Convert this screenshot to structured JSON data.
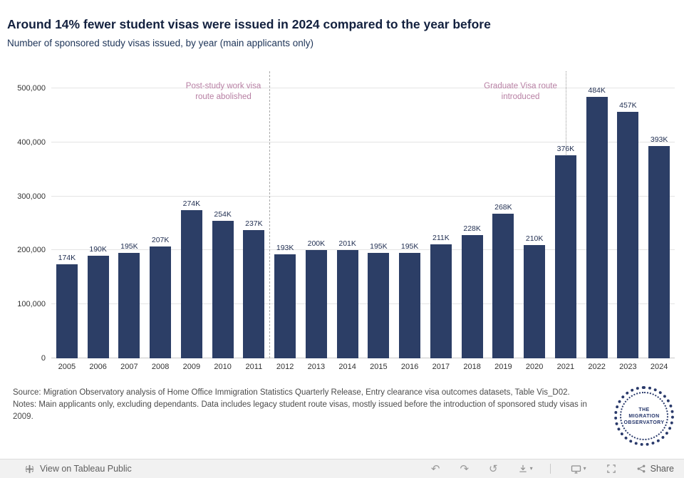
{
  "chart_data": {
    "type": "bar",
    "title": "Around 14% fewer student visas were issued in 2024 compared to the year before",
    "subtitle": "Number of sponsored study visas issued, by year (main applicants only)",
    "categories": [
      "2005",
      "2006",
      "2007",
      "2008",
      "2009",
      "2010",
      "2011",
      "2012",
      "2013",
      "2014",
      "2015",
      "2016",
      "2017",
      "2018",
      "2019",
      "2020",
      "2021",
      "2022",
      "2023",
      "2024"
    ],
    "values": [
      174000,
      190000,
      195000,
      207000,
      274000,
      254000,
      237000,
      193000,
      200000,
      201000,
      195000,
      195000,
      211000,
      228000,
      268000,
      210000,
      376000,
      484000,
      457000,
      393000
    ],
    "bar_labels": [
      "174K",
      "190K",
      "195K",
      "207K",
      "274K",
      "254K",
      "237K",
      "193K",
      "200K",
      "201K",
      "195K",
      "195K",
      "211K",
      "228K",
      "268K",
      "210K",
      "376K",
      "484K",
      "457K",
      "393K"
    ],
    "ylim": [
      0,
      500000
    ],
    "yticks": [
      0,
      100000,
      200000,
      300000,
      400000,
      500000
    ],
    "ytick_labels": [
      "0",
      "100,000",
      "200,000",
      "300,000",
      "400,000",
      "500,000"
    ],
    "grid": "horizontal",
    "legend": "none",
    "bar_color": "#2c3e66",
    "annotation_color": "#b77fa3",
    "annotations": [
      {
        "lines": [
          "Post-study work visa",
          "route abolished"
        ],
        "style": "dashed",
        "x_fraction": 0.35
      },
      {
        "lines": [
          "Graduate Visa route",
          "introduced"
        ],
        "style": "dotted",
        "x_fraction": 0.825
      }
    ]
  },
  "footnotes": {
    "source": "Source: Migration Observatory analysis of Home Office Immigration Statistics Quarterly Release, Entry clearance visa outcomes datasets, Table Vis_D02.",
    "notes": "Notes: Main applicants only, excluding dependants. Data includes legacy student route visas, mostly issued before the introduction of sponsored study visas in 2009."
  },
  "logo": {
    "lines": [
      "THE",
      "MIGRATION",
      "OBSERVATORY"
    ]
  },
  "toolbar": {
    "view_label": "View on Tableau Public",
    "share_label": "Share",
    "caret": "▾",
    "undo_glyph": "↶",
    "redo_glyph": "↷",
    "replay_glyph": "↺"
  }
}
